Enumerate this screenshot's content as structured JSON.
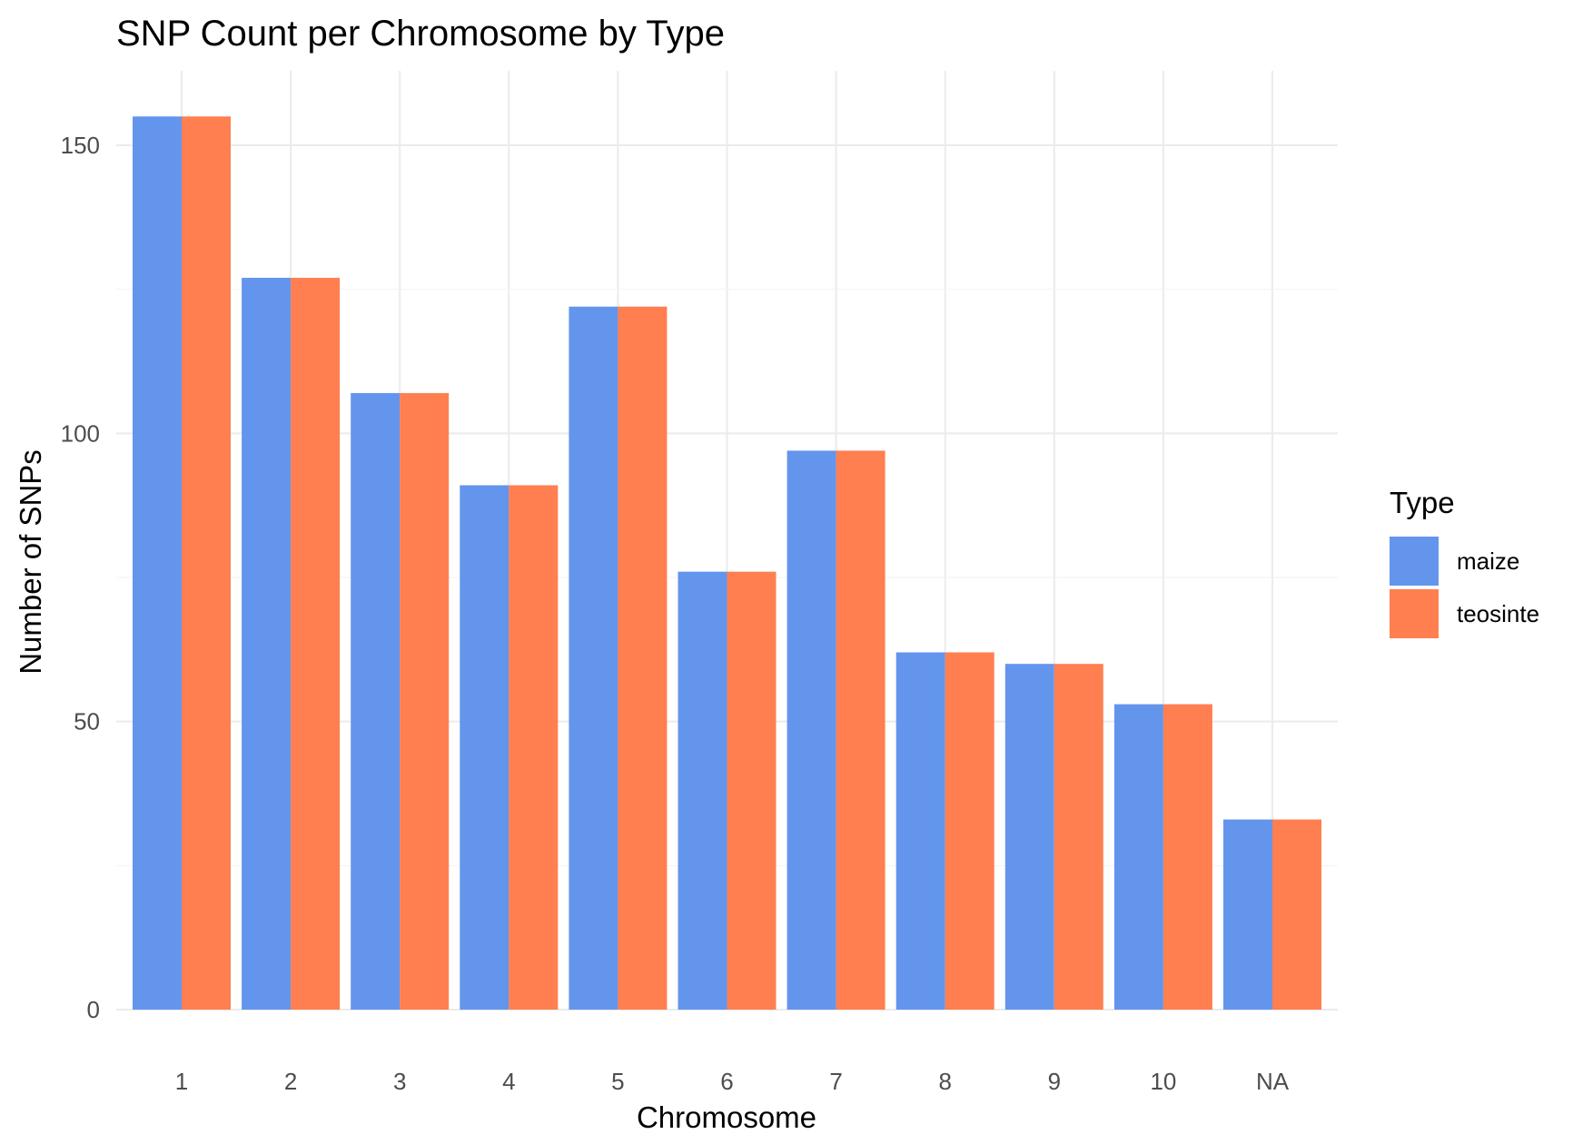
{
  "chart_data": {
    "type": "bar",
    "title": "SNP Count per Chromosome by Type",
    "xlabel": "Chromosome",
    "ylabel": "Number of SNPs",
    "categories": [
      "1",
      "2",
      "3",
      "4",
      "5",
      "6",
      "7",
      "8",
      "9",
      "10",
      "NA"
    ],
    "series": [
      {
        "name": "maize",
        "color": "#6495ED",
        "values": [
          155,
          127,
          107,
          91,
          122,
          76,
          97,
          62,
          60,
          53,
          33
        ]
      },
      {
        "name": "teosinte",
        "color": "#FF7F50",
        "values": [
          155,
          127,
          107,
          91,
          122,
          76,
          97,
          62,
          60,
          53,
          33
        ]
      }
    ],
    "ylim": [
      0,
      160
    ],
    "yticks": [
      0,
      50,
      100,
      150
    ],
    "ytick_labels": [
      "0",
      "50",
      "100",
      "150"
    ],
    "grid": true,
    "legend": {
      "title": "Type",
      "position": "right"
    }
  }
}
